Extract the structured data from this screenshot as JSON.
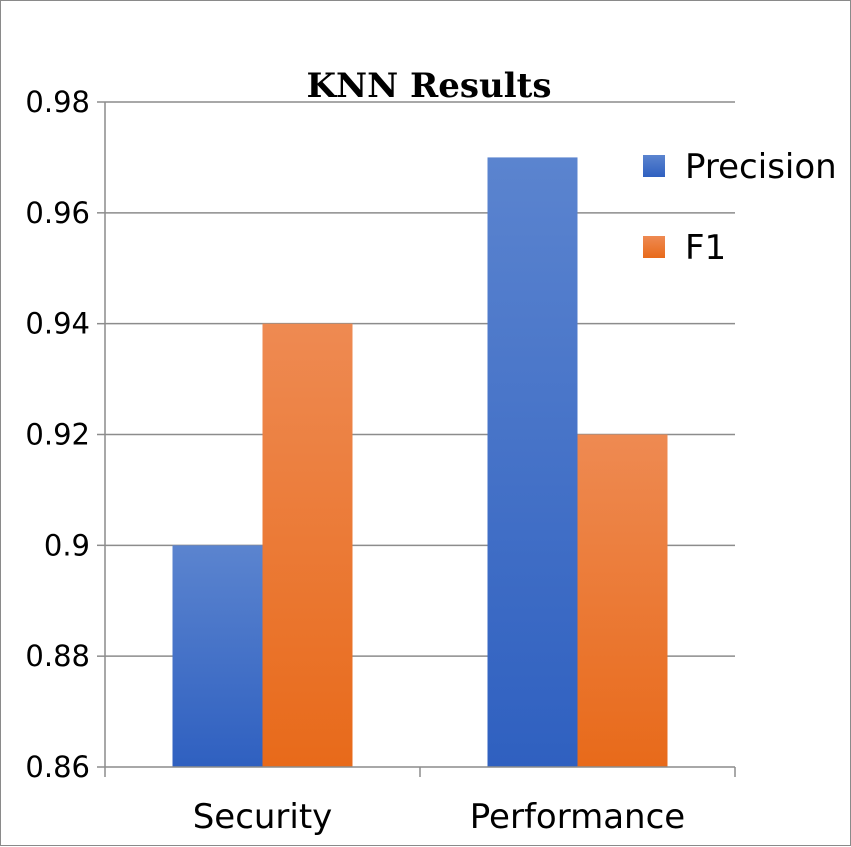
{
  "chart_data": {
    "type": "bar",
    "title": "KNN Results",
    "xlabel": "",
    "ylabel": "",
    "categories": [
      "Security",
      "Performance"
    ],
    "series": [
      {
        "name": "Precision",
        "values": [
          0.9,
          0.97
        ],
        "color": "#3a6cc8"
      },
      {
        "name": "F1",
        "values": [
          0.94,
          0.92
        ],
        "color": "#ee7a28"
      }
    ],
    "ylim": [
      0.86,
      0.98
    ],
    "yticks": [
      0.98,
      0.96,
      0.94,
      0.92,
      0.9,
      0.88,
      0.86
    ],
    "ytick_labels": [
      "0.98",
      "0.96",
      "0.94",
      "0.92",
      "0.9",
      "0.88",
      "0.86"
    ],
    "grid": true,
    "legend_position": "right"
  }
}
